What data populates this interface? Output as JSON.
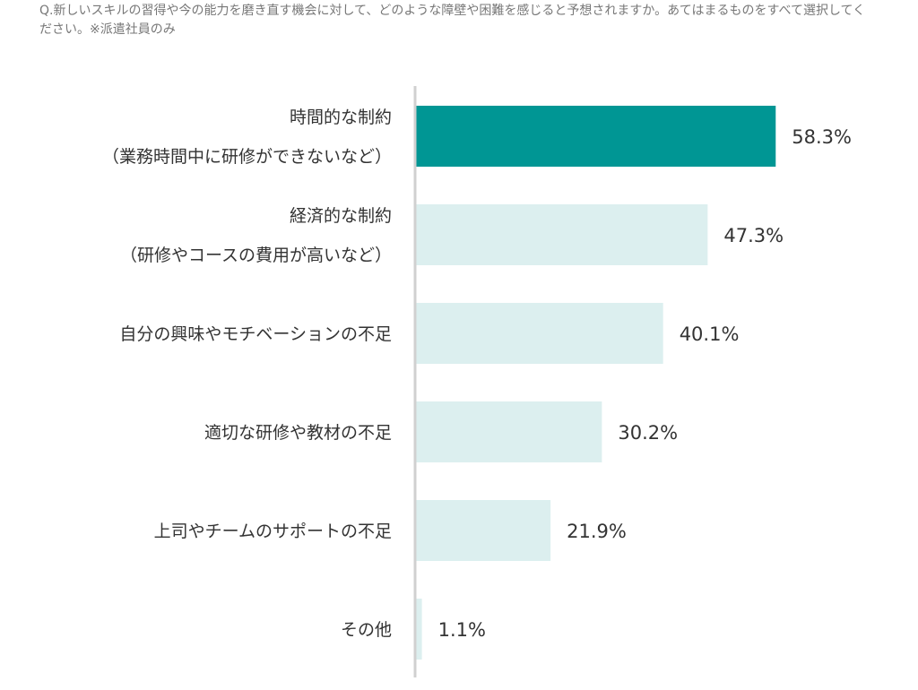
{
  "chart_data": {
    "type": "bar",
    "orientation": "horizontal",
    "title": "Q.新しいスキルの習得や今の能力を磨き直す機会に対して、どのような障壁や困難を感じると予想されますか。あてはまるものをすべて選択してください。※派遣社員のみ",
    "categories": [
      [
        "時間的な制約",
        "（業務時間中に研修ができないなど）"
      ],
      [
        "経済的な制約",
        "（研修やコースの費用が高いなど）"
      ],
      [
        "自分の興味やモチベーションの不足"
      ],
      [
        "適切な研修や教材の不足"
      ],
      [
        "上司やチームのサポートの不足"
      ],
      [
        "その他"
      ]
    ],
    "values": [
      58.3,
      47.3,
      40.1,
      30.2,
      21.9,
      1.1
    ],
    "value_labels": [
      "58.3%",
      "47.3%",
      "40.1%",
      "30.2%",
      "21.9%",
      "1.1%"
    ],
    "unit": "%",
    "xlim": [
      0,
      100
    ],
    "highlight_color": "#009694",
    "bar_color": "#dcefef",
    "axis_color": "#d0d0d0"
  }
}
